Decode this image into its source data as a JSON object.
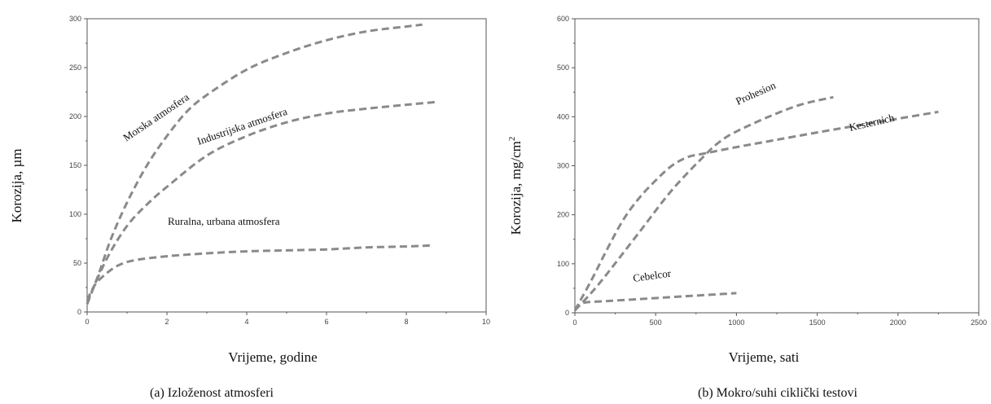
{
  "chart_data": [
    {
      "type": "line",
      "caption": "(a) Izloženost atmosferi",
      "xlabel": "Vrijeme, godine",
      "ylabel": "Korozija, µm",
      "xlim": [
        0,
        10
      ],
      "ylim": [
        0,
        300
      ],
      "xticks": [
        0,
        2,
        4,
        6,
        8,
        10
      ],
      "yticks": [
        0,
        50,
        100,
        150,
        200,
        250,
        300
      ],
      "grid": false,
      "series": [
        {
          "name": "Morska atmosfera",
          "color": "#8a8a8a",
          "x": [
            0,
            0.3,
            0.6,
            1.0,
            1.5,
            2.0,
            2.5,
            3.0,
            4.0,
            5.0,
            6.0,
            7.0,
            8.0,
            8.4
          ],
          "y": [
            8,
            40,
            75,
            112,
            150,
            180,
            205,
            222,
            248,
            265,
            278,
            287,
            292,
            294
          ]
        },
        {
          "name": "Industrijska atmosfera",
          "color": "#8a8a8a",
          "x": [
            0,
            0.5,
            1.0,
            1.5,
            2.0,
            3.0,
            4.0,
            5.0,
            6.0,
            7.0,
            8.0,
            8.8
          ],
          "y": [
            10,
            55,
            88,
            110,
            128,
            160,
            180,
            194,
            203,
            208,
            212,
            215
          ]
        },
        {
          "name": "Ruralna, urbana atmosfera",
          "color": "#8a8a8a",
          "x": [
            0,
            0.2,
            0.5,
            0.8,
            1.2,
            2.0,
            3.0,
            4.0,
            5.0,
            6.0,
            7.0,
            8.0,
            8.6
          ],
          "y": [
            12,
            28,
            40,
            48,
            53,
            57,
            60,
            62,
            63,
            64,
            66,
            67,
            68
          ]
        }
      ]
    },
    {
      "type": "line",
      "caption": "(b) Mokro/suhi ciklički testovi",
      "xlabel": "Vrijeme, sati",
      "ylabel": "Korozija, mg/cm",
      "ylabel_sup": "2",
      "xlim": [
        0,
        2500
      ],
      "ylim": [
        0,
        600
      ],
      "xticks": [
        0,
        500,
        1000,
        1500,
        2000,
        2500
      ],
      "yticks": [
        0,
        100,
        200,
        300,
        400,
        500,
        600
      ],
      "grid": false,
      "series": [
        {
          "name": "Prohesion",
          "color": "#8a8a8a",
          "x": [
            0,
            100,
            200,
            400,
            600,
            800,
            900,
            1000,
            1200,
            1400,
            1600
          ],
          "y": [
            5,
            40,
            80,
            165,
            250,
            320,
            350,
            370,
            400,
            425,
            440
          ]
        },
        {
          "name": "Kesternich",
          "color": "#8a8a8a",
          "x": [
            0,
            100,
            200,
            300,
            400,
            500,
            600,
            700,
            800,
            1000,
            1200,
            1500,
            1800,
            2000,
            2250
          ],
          "y": [
            5,
            65,
            130,
            190,
            235,
            270,
            300,
            318,
            325,
            338,
            350,
            368,
            385,
            396,
            410
          ]
        },
        {
          "name": "Cebelcor",
          "color": "#8a8a8a",
          "x": [
            0,
            50,
            200,
            400,
            600,
            800,
            1000
          ],
          "y": [
            5,
            20,
            24,
            28,
            32,
            36,
            40
          ]
        }
      ]
    }
  ]
}
